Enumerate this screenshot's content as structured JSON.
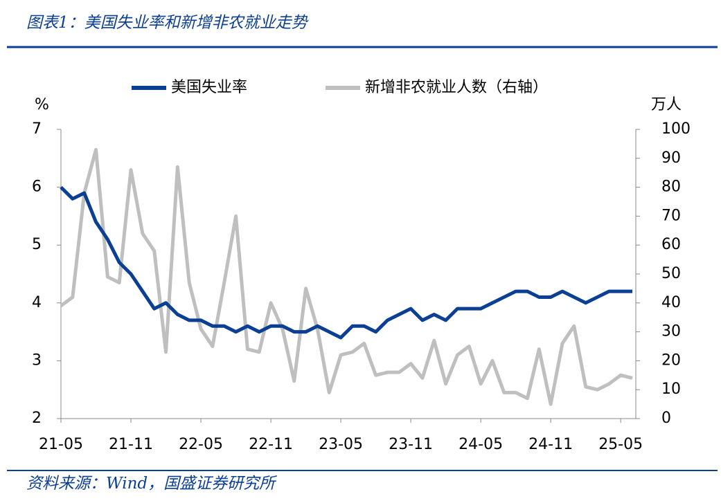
{
  "chart_data": {
    "type": "line",
    "title": "图表1：美国失业率和新增非农就业走势",
    "source": "资料来源：Wind，国盛证券研究所",
    "y_unit": "%",
    "y2_unit": "万人",
    "categories": [
      "21-05",
      null,
      null,
      null,
      null,
      null,
      "21-11",
      null,
      null,
      null,
      null,
      null,
      "22-05",
      null,
      null,
      null,
      null,
      null,
      "22-11",
      null,
      null,
      null,
      null,
      null,
      "23-05",
      null,
      null,
      null,
      null,
      null,
      "23-11",
      null,
      null,
      null,
      null,
      null,
      "24-05",
      null,
      null,
      null,
      null,
      null,
      "24-11",
      null,
      null,
      null,
      null,
      null,
      "25-05",
      null
    ],
    "series": [
      {
        "name": "美国失业率",
        "color": "#0b3f94",
        "values": [
          6.0,
          5.8,
          5.9,
          5.4,
          5.1,
          4.7,
          4.5,
          4.2,
          3.9,
          4.0,
          3.8,
          3.7,
          3.7,
          3.6,
          3.6,
          3.5,
          3.6,
          3.5,
          3.6,
          3.6,
          3.5,
          3.5,
          3.6,
          3.5,
          3.4,
          3.6,
          3.6,
          3.5,
          3.7,
          3.8,
          3.9,
          3.7,
          3.8,
          3.7,
          3.9,
          3.9,
          3.9,
          4.0,
          4.1,
          4.2,
          4.2,
          4.1,
          4.1,
          4.2,
          4.1,
          4.0,
          4.1,
          4.2,
          4.2,
          4.2
        ]
      },
      {
        "name": "新增非农就业人数（右轴）",
        "color": "#bfbfbf",
        "axis": "y2",
        "values": [
          39,
          42,
          78,
          93,
          49,
          47,
          86,
          64,
          58,
          23,
          87,
          47,
          31,
          25,
          47,
          70,
          24,
          23,
          40,
          31,
          13,
          45,
          31,
          9,
          22,
          23,
          26,
          15,
          16,
          16,
          19,
          14,
          27,
          12,
          22,
          25,
          12,
          20,
          9,
          9,
          7,
          24,
          5,
          26,
          32,
          11,
          10,
          12,
          15,
          14
        ]
      }
    ],
    "ylim": [
      2,
      7
    ],
    "yticks": [
      2,
      3,
      4,
      5,
      6,
      7
    ],
    "y2lim": [
      0,
      100
    ],
    "y2ticks": [
      0,
      10,
      20,
      30,
      40,
      50,
      60,
      70,
      80,
      90,
      100
    ]
  }
}
